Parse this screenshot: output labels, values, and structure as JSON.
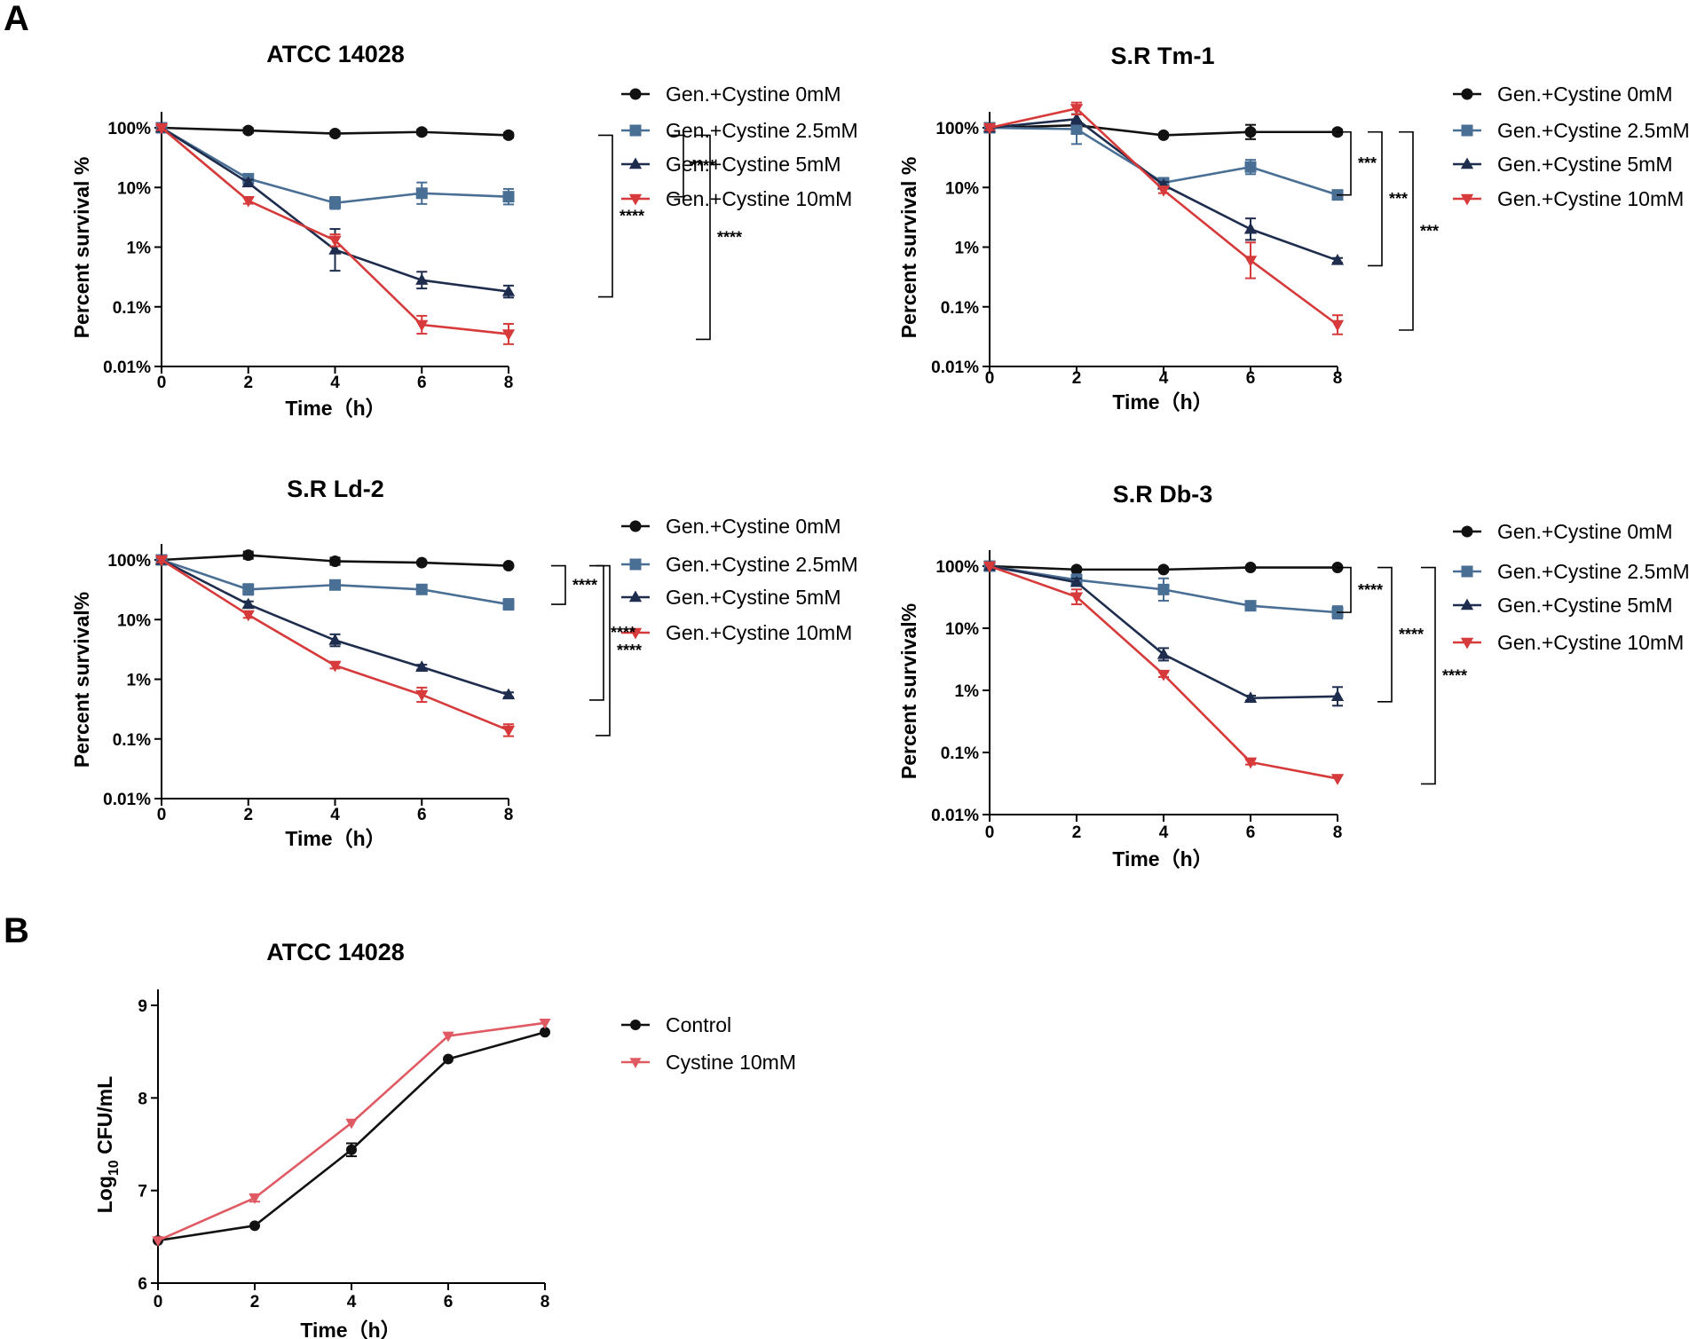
{
  "panels": {
    "A": "A",
    "B": "B"
  },
  "colors": {
    "c0": "#111111",
    "c25": "#4a6f95",
    "c5": "#1e2d4d",
    "c10": "#d63a3a",
    "cCystine": "#e05a64"
  },
  "chart_data": [
    {
      "id": "atcc14028",
      "type": "line",
      "title": "ATCC 14028",
      "xlabel": "Time（h）",
      "ylabel": "Percent survival %",
      "yscale": "log",
      "ylim": [
        0.01,
        100
      ],
      "yticks": [
        100,
        10,
        1,
        0.1,
        0.01
      ],
      "ytick_labels": [
        "100%",
        "10%",
        "1%",
        "0.1%",
        "0.01%"
      ],
      "xticks": [
        0,
        2,
        4,
        6,
        8
      ],
      "xtick_labels": [
        "0",
        "2",
        "4",
        "6",
        "8"
      ],
      "x": [
        0,
        2,
        4,
        6,
        8
      ],
      "series": [
        {
          "name": "Gen.+Cystine 0mM",
          "marker": "circle",
          "color": "#111111",
          "values": [
            100,
            90,
            80,
            85,
            75
          ],
          "err": [
            0.05,
            0.04,
            0.04,
            0.04,
            0.04
          ]
        },
        {
          "name": "Gen.+Cystine 2.5mM",
          "marker": "square",
          "color": "#4a6f95",
          "values": [
            100,
            14,
            5.5,
            8,
            7
          ],
          "err": [
            0.06,
            0.08,
            0.1,
            0.18,
            0.13
          ]
        },
        {
          "name": "Gen.+Cystine 5mM",
          "marker": "triangle-up",
          "color": "#1e2d4d",
          "values": [
            100,
            12,
            0.9,
            0.28,
            0.18
          ],
          "err": [
            0.04,
            0.05,
            0.35,
            0.14,
            0.1
          ]
        },
        {
          "name": "Gen.+Cystine 10mM",
          "marker": "triangle-down",
          "color": "#d63a3a",
          "values": [
            100,
            6,
            1.3,
            0.05,
            0.035
          ],
          "err": [
            0.04,
            0.05,
            0.1,
            0.15,
            0.17
          ]
        }
      ],
      "significance": [
        {
          "from": "Gen.+Cystine 0mM",
          "to": "Gen.+Cystine 2.5mM",
          "label": "****"
        },
        {
          "from": "Gen.+Cystine 0mM",
          "to": "Gen.+Cystine 5mM",
          "label": "****"
        },
        {
          "from": "Gen.+Cystine 0mM",
          "to": "Gen.+Cystine 10mM",
          "label": "****"
        }
      ]
    },
    {
      "id": "srtm1",
      "type": "line",
      "title": "S.R Tm-1",
      "xlabel": "Time（h）",
      "ylabel": "Percent survival %",
      "yscale": "log",
      "ylim": [
        0.01,
        100
      ],
      "yticks": [
        100,
        10,
        1,
        0.1,
        0.01
      ],
      "ytick_labels": [
        "100%",
        "10%",
        "1%",
        "0.1%",
        "0.01%"
      ],
      "xticks": [
        0,
        2,
        4,
        6,
        8
      ],
      "xtick_labels": [
        "0",
        "2",
        "4",
        "6",
        "8"
      ],
      "x": [
        0,
        2,
        4,
        6,
        8
      ],
      "series": [
        {
          "name": "Gen.+Cystine 0mM",
          "marker": "circle",
          "color": "#111111",
          "values": [
            100,
            110,
            75,
            85,
            85
          ],
          "err": [
            0.04,
            0.06,
            0.03,
            0.12,
            0.04
          ]
        },
        {
          "name": "Gen.+Cystine 2.5mM",
          "marker": "square",
          "color": "#4a6f95",
          "values": [
            100,
            95,
            12,
            22,
            7.5
          ],
          "err": [
            0.05,
            0.25,
            0.06,
            0.12,
            0.05
          ]
        },
        {
          "name": "Gen.+Cystine 5mM",
          "marker": "triangle-up",
          "color": "#1e2d4d",
          "values": [
            100,
            140,
            11,
            2,
            0.6
          ],
          "err": [
            0.04,
            0.08,
            0.05,
            0.18,
            0.04
          ]
        },
        {
          "name": "Gen.+Cystine 10mM",
          "marker": "triangle-down",
          "color": "#d63a3a",
          "values": [
            100,
            210,
            9,
            0.6,
            0.05
          ],
          "err": [
            0.04,
            0.1,
            0.05,
            0.3,
            0.16
          ]
        }
      ],
      "significance": [
        {
          "from": "Gen.+Cystine 0mM",
          "to": "Gen.+Cystine 2.5mM",
          "label": "***"
        },
        {
          "from": "Gen.+Cystine 0mM",
          "to": "Gen.+Cystine 5mM",
          "label": "***"
        },
        {
          "from": "Gen.+Cystine 0mM",
          "to": "Gen.+Cystine 10mM",
          "label": "***"
        }
      ]
    },
    {
      "id": "srld2",
      "type": "line",
      "title": "S.R Ld-2",
      "xlabel": "Time（h）",
      "ylabel": "Percent survival%",
      "yscale": "log",
      "ylim": [
        0.01,
        100
      ],
      "yticks": [
        100,
        10,
        1,
        0.1,
        0.01
      ],
      "ytick_labels": [
        "100%",
        "10%",
        "1%",
        "0.1%",
        "0.01%"
      ],
      "xticks": [
        0,
        2,
        4,
        6,
        8
      ],
      "xtick_labels": [
        "0",
        "2",
        "4",
        "6",
        "8"
      ],
      "x": [
        0,
        2,
        4,
        6,
        8
      ],
      "series": [
        {
          "name": "Gen.+Cystine 0mM",
          "marker": "circle",
          "color": "#111111",
          "values": [
            100,
            120,
            95,
            90,
            80
          ],
          "err": [
            0.04,
            0.06,
            0.06,
            0.03,
            0.03
          ]
        },
        {
          "name": "Gen.+Cystine 2.5mM",
          "marker": "square",
          "color": "#4a6f95",
          "values": [
            100,
            32,
            38,
            32,
            18
          ],
          "err": [
            0.04,
            0.09,
            0.05,
            0.04,
            0.09
          ]
        },
        {
          "name": "Gen.+Cystine 5mM",
          "marker": "triangle-up",
          "color": "#1e2d4d",
          "values": [
            100,
            18,
            4.5,
            1.6,
            0.55
          ],
          "err": [
            0.04,
            0.05,
            0.1,
            0.04,
            0.04
          ]
        },
        {
          "name": "Gen.+Cystine 10mM",
          "marker": "triangle-down",
          "color": "#d63a3a",
          "values": [
            100,
            12,
            1.7,
            0.55,
            0.14
          ],
          "err": [
            0.04,
            0.05,
            0.05,
            0.12,
            0.1
          ]
        }
      ],
      "significance": [
        {
          "from": "Gen.+Cystine 0mM",
          "to": "Gen.+Cystine 2.5mM",
          "label": "****"
        },
        {
          "from": "Gen.+Cystine 0mM",
          "to": "Gen.+Cystine 5mM",
          "label": "****"
        },
        {
          "from": "Gen.+Cystine 0mM",
          "to": "Gen.+Cystine 10mM",
          "label": "****"
        }
      ]
    },
    {
      "id": "srdb3",
      "type": "line",
      "title": "S.R Db-3",
      "xlabel": "Time（h）",
      "ylabel": "Percent survival%",
      "yscale": "log",
      "ylim": [
        0.01,
        100
      ],
      "yticks": [
        100,
        10,
        1,
        0.1,
        0.01
      ],
      "ytick_labels": [
        "100%",
        "10%",
        "1%",
        "0.1%",
        "0.01%"
      ],
      "xticks": [
        0,
        2,
        4,
        6,
        8
      ],
      "xtick_labels": [
        "0",
        "2",
        "4",
        "6",
        "8"
      ],
      "x": [
        0,
        2,
        4,
        6,
        8
      ],
      "series": [
        {
          "name": "Gen.+Cystine 0mM",
          "marker": "circle",
          "color": "#111111",
          "values": [
            100,
            88,
            88,
            95,
            95
          ],
          "err": [
            0.03,
            0.03,
            0.03,
            0.03,
            0.03
          ]
        },
        {
          "name": "Gen.+Cystine 2.5mM",
          "marker": "square",
          "color": "#4a6f95",
          "values": [
            100,
            60,
            42,
            23,
            18
          ],
          "err": [
            0.03,
            0.09,
            0.18,
            0.04,
            0.1
          ]
        },
        {
          "name": "Gen.+Cystine 5mM",
          "marker": "triangle-up",
          "color": "#1e2d4d",
          "values": [
            100,
            55,
            3.8,
            0.75,
            0.8
          ],
          "err": [
            0.03,
            0.06,
            0.1,
            0.04,
            0.15
          ]
        },
        {
          "name": "Gen.+Cystine 10mM",
          "marker": "triangle-down",
          "color": "#d63a3a",
          "values": [
            100,
            32,
            1.8,
            0.07,
            0.038
          ],
          "err": [
            0.03,
            0.12,
            0.04,
            0.04,
            0.03
          ]
        }
      ],
      "significance": [
        {
          "from": "Gen.+Cystine 0mM",
          "to": "Gen.+Cystine 2.5mM",
          "label": "****"
        },
        {
          "from": "Gen.+Cystine 0mM",
          "to": "Gen.+Cystine 5mM",
          "label": "****"
        },
        {
          "from": "Gen.+Cystine 0mM",
          "to": "Gen.+Cystine 10mM",
          "label": "****"
        }
      ]
    },
    {
      "id": "atcc14028b",
      "type": "line",
      "title": "ATCC 14028",
      "xlabel": "Time（h）",
      "ylabel_main": "Log",
      "ylabel_sub": "10",
      "ylabel_rest": " CFU/mL",
      "yscale": "linear",
      "ylim": [
        6,
        9
      ],
      "yticks": [
        9,
        8,
        7,
        6
      ],
      "ytick_labels": [
        "9",
        "8",
        "7",
        "6"
      ],
      "xticks": [
        0,
        2,
        4,
        6,
        8
      ],
      "xtick_labels": [
        "0",
        "2",
        "4",
        "6",
        "8"
      ],
      "x": [
        0,
        2,
        4,
        6,
        8
      ],
      "series": [
        {
          "name": "Control",
          "marker": "circle",
          "color": "#111111",
          "values": [
            6.46,
            6.62,
            7.44,
            8.42,
            8.71
          ],
          "err": [
            0.02,
            0.02,
            0.07,
            0.02,
            0.02
          ]
        },
        {
          "name": "Cystine 10mM",
          "marker": "triangle-down",
          "color": "#e05a64",
          "values": [
            6.46,
            6.92,
            7.73,
            8.67,
            8.81
          ],
          "err": [
            0.02,
            0.04,
            0.03,
            0.02,
            0.02
          ]
        }
      ]
    }
  ]
}
